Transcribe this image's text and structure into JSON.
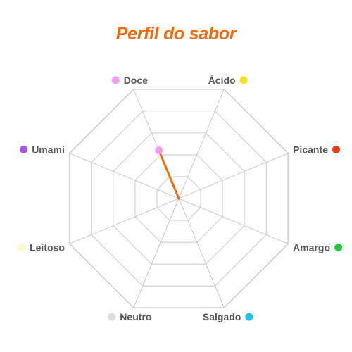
{
  "title": "Perfil do sabor",
  "colors": {
    "title": "#f06a0f",
    "grid": "#c8c8c8",
    "series_line": "#f06a0f"
  },
  "chart_data": {
    "type": "radar",
    "title": "Perfil do sabor",
    "rmax": 5,
    "rings": 5,
    "axes": [
      {
        "label": "Doce",
        "color": "#f49cf0",
        "value": 2.2
      },
      {
        "label": "Ácido",
        "color": "#ffe01a",
        "value": 0
      },
      {
        "label": "Picante",
        "color": "#ee3a16",
        "value": 0
      },
      {
        "label": "Amargo",
        "color": "#22c83a",
        "value": 0
      },
      {
        "label": "Salgado",
        "color": "#1ec4f2",
        "value": 0
      },
      {
        "label": "Neutro",
        "color": "#dedede",
        "value": 0
      },
      {
        "label": "Leitoso",
        "color": "#fafac8",
        "value": 0
      },
      {
        "label": "Umami",
        "color": "#a855ee",
        "value": 0
      }
    ],
    "grid": true,
    "legend": "none"
  }
}
